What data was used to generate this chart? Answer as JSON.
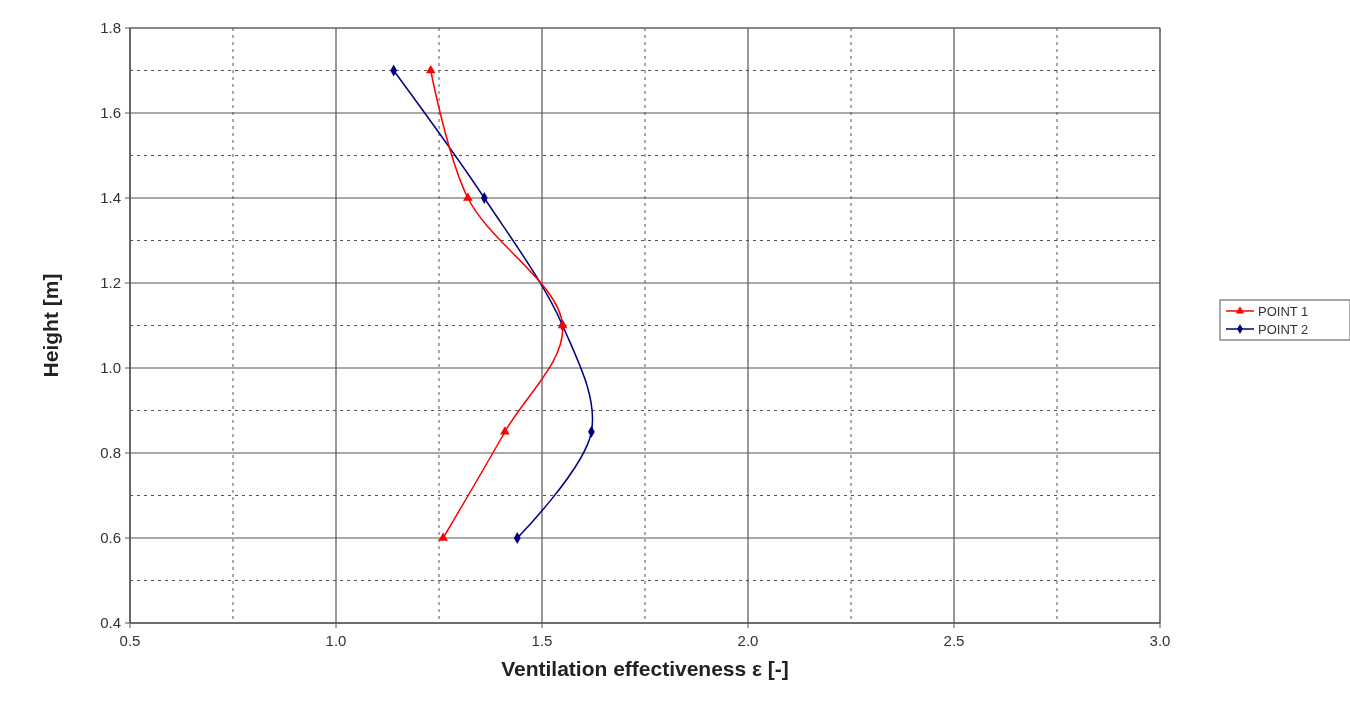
{
  "chart_data": {
    "type": "line",
    "xlabel": "Ventilation effectiveness ε [-]",
    "ylabel": "Height [m]",
    "xlim": [
      0.5,
      3.0
    ],
    "ylim": [
      0.4,
      1.8
    ],
    "xticks": [
      {
        "value": 0.5,
        "label": "0.5"
      },
      {
        "value": 1,
        "label": "1.0"
      },
      {
        "value": 1.5,
        "label": "1.5"
      },
      {
        "value": 2,
        "label": "2.0"
      },
      {
        "value": 2.5,
        "label": "2.5"
      },
      {
        "value": 3,
        "label": "3.0"
      }
    ],
    "yticks": [
      {
        "value": 0.4,
        "label": "0.4"
      },
      {
        "value": 0.6,
        "label": "0.6"
      },
      {
        "value": 0.8,
        "label": "0.8"
      },
      {
        "value": 1,
        "label": "1.0"
      },
      {
        "value": 1.2,
        "label": "1.2"
      },
      {
        "value": 1.4,
        "label": "1.4"
      },
      {
        "value": 1.6,
        "label": "1.6"
      },
      {
        "value": 1.8,
        "label": "1.8"
      }
    ],
    "grid": true,
    "legend": "right",
    "line_style": "solid",
    "series": [
      {
        "name": "POINT 1",
        "color": "#ff0000",
        "marker": "triangle",
        "x": [
          1.23,
          1.32,
          1.55,
          1.41,
          1.26
        ],
        "values": [
          1.7,
          1.4,
          1.1,
          0.85,
          0.6
        ]
      },
      {
        "name": "POINT 2",
        "color": "#000080",
        "marker": "diamond",
        "x": [
          1.14,
          1.36,
          1.55,
          1.62,
          1.44
        ],
        "values": [
          1.7,
          1.4,
          1.1,
          0.85,
          0.6
        ]
      }
    ]
  }
}
